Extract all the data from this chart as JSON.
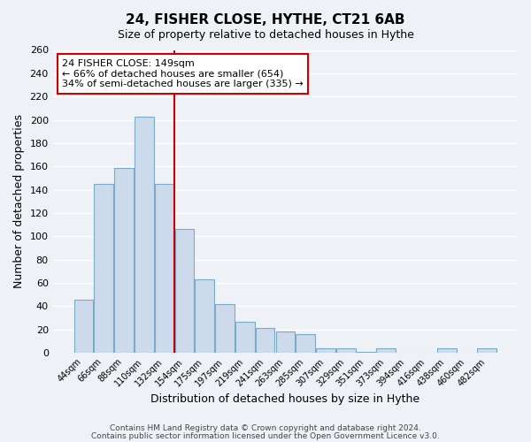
{
  "title": "24, FISHER CLOSE, HYTHE, CT21 6AB",
  "subtitle": "Size of property relative to detached houses in Hythe",
  "xlabel": "Distribution of detached houses by size in Hythe",
  "ylabel": "Number of detached properties",
  "bar_color": "#ccdaeb",
  "bar_edgecolor": "#7aaac8",
  "categories": [
    "44sqm",
    "66sqm",
    "88sqm",
    "110sqm",
    "132sqm",
    "154sqm",
    "175sqm",
    "197sqm",
    "219sqm",
    "241sqm",
    "263sqm",
    "285sqm",
    "307sqm",
    "329sqm",
    "351sqm",
    "373sqm",
    "394sqm",
    "416sqm",
    "438sqm",
    "460sqm",
    "482sqm"
  ],
  "values": [
    46,
    145,
    159,
    203,
    145,
    106,
    63,
    42,
    27,
    21,
    18,
    16,
    4,
    4,
    1,
    4,
    0,
    0,
    4,
    0,
    4
  ],
  "ylim": [
    0,
    260
  ],
  "yticks": [
    0,
    20,
    40,
    60,
    80,
    100,
    120,
    140,
    160,
    180,
    200,
    220,
    240,
    260
  ],
  "vline_color": "#cc0000",
  "annotation_box_text": "24 FISHER CLOSE: 149sqm\n← 66% of detached houses are smaller (654)\n34% of semi-detached houses are larger (335) →",
  "footer_line1": "Contains HM Land Registry data © Crown copyright and database right 2024.",
  "footer_line2": "Contains public sector information licensed under the Open Government Licence v3.0.",
  "background_color": "#eef2f7",
  "grid_color": "#ffffff"
}
